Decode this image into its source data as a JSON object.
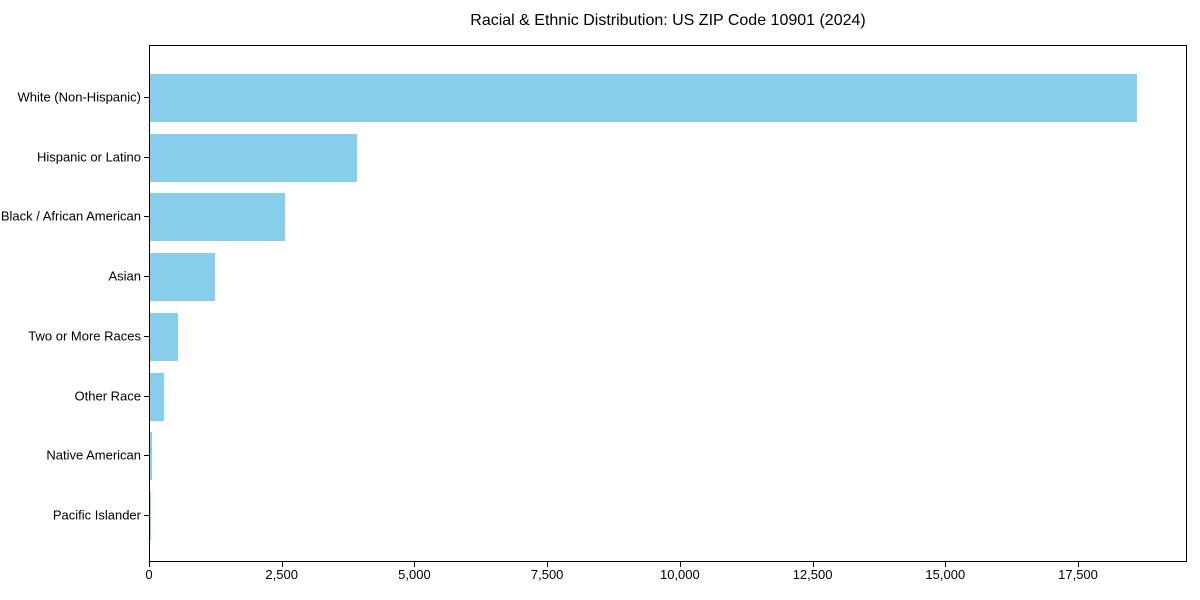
{
  "page": {
    "background": "#ffffff"
  },
  "chart_data": {
    "type": "bar",
    "orientation": "horizontal",
    "title": "Racial & Ethnic Distribution: US ZIP Code 10901 (2024)",
    "categories": [
      "White (Non-Hispanic)",
      "Hispanic or Latino",
      "Black / African American",
      "Asian",
      "Two or More Races",
      "Other Race",
      "Native American",
      "Pacific Islander"
    ],
    "values": [
      18600,
      3900,
      2550,
      1230,
      520,
      260,
      30,
      10
    ],
    "xlabel": "",
    "ylabel": "",
    "xlim": [
      0,
      19553
    ],
    "xticks": [
      0,
      2500,
      5000,
      7500,
      10000,
      12500,
      15000,
      17500
    ],
    "xtick_labels": [
      "0",
      "2,500",
      "5,000",
      "7,500",
      "10,000",
      "12,500",
      "15,000",
      "17,500"
    ],
    "grid": false,
    "legend": null,
    "colors": {
      "bar": "#87CEEB",
      "text": "#000000",
      "spine": "#000000",
      "background": "#ffffff"
    }
  }
}
